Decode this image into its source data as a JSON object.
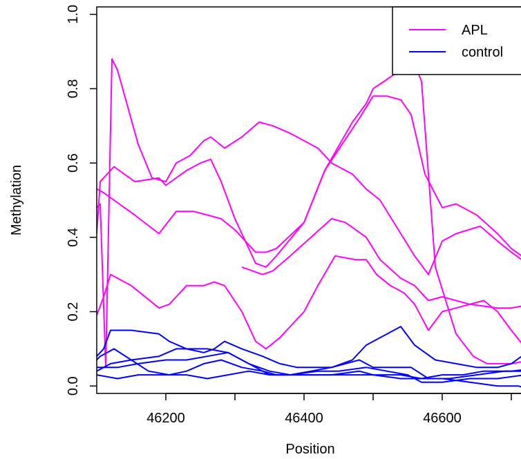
{
  "chart_data": {
    "type": "line",
    "title": "",
    "xlabel": "Position",
    "ylabel": "Methylation",
    "xlim": [
      46100,
      46750
    ],
    "ylim": [
      -0.02,
      1.02
    ],
    "xticks": [
      46200,
      46400,
      46600
    ],
    "xtick_labels": [
      "46200",
      "46400",
      "46600"
    ],
    "yticks": [
      0.0,
      0.2,
      0.4,
      0.6,
      0.8,
      1.0
    ],
    "ytick_labels": [
      "0.0",
      "0.2",
      "0.4",
      "0.6",
      "0.8",
      "1.0"
    ],
    "legend": {
      "placement": "top-right",
      "entries": [
        {
          "label": "APL",
          "color": "#ff00ff"
        },
        {
          "label": "control",
          "color": "#0000ff"
        }
      ]
    },
    "series": [
      {
        "group": "APL",
        "color": "#ff00ff",
        "points": [
          [
            46100,
            0.41
          ],
          [
            46105,
            0.55
          ],
          [
            46115,
            0.57
          ],
          [
            46125,
            0.59
          ],
          [
            46155,
            0.55
          ],
          [
            46190,
            0.56
          ],
          [
            46200,
            0.54
          ],
          [
            46230,
            0.58
          ],
          [
            46250,
            0.6
          ],
          [
            46265,
            0.61
          ],
          [
            46280,
            0.55
          ],
          [
            46300,
            0.45
          ],
          [
            46330,
            0.33
          ],
          [
            46345,
            0.32
          ],
          [
            46360,
            0.35
          ],
          [
            46400,
            0.44
          ],
          [
            46430,
            0.58
          ],
          [
            46470,
            0.71
          ],
          [
            46490,
            0.76
          ],
          [
            46500,
            0.8
          ],
          [
            46540,
            0.85
          ],
          [
            46555,
            0.89
          ],
          [
            46570,
            0.82
          ],
          [
            46590,
            0.32
          ],
          [
            46620,
            0.14
          ],
          [
            46645,
            0.08
          ],
          [
            46665,
            0.06
          ],
          [
            46700,
            0.06
          ],
          [
            46730,
            0.07
          ],
          [
            46750,
            0.09
          ]
        ]
      },
      {
        "group": "APL",
        "color": "#ff00ff",
        "points": [
          [
            46100,
            0.53
          ],
          [
            46110,
            0.52
          ],
          [
            46125,
            0.5
          ],
          [
            46155,
            0.46
          ],
          [
            46190,
            0.41
          ],
          [
            46215,
            0.47
          ],
          [
            46240,
            0.47
          ],
          [
            46260,
            0.46
          ],
          [
            46280,
            0.45
          ],
          [
            46300,
            0.42
          ],
          [
            46330,
            0.36
          ],
          [
            46345,
            0.36
          ],
          [
            46360,
            0.37
          ],
          [
            46400,
            0.44
          ],
          [
            46430,
            0.58
          ],
          [
            46480,
            0.72
          ],
          [
            46500,
            0.78
          ],
          [
            46520,
            0.78
          ],
          [
            46540,
            0.77
          ],
          [
            46555,
            0.73
          ],
          [
            46575,
            0.57
          ],
          [
            46600,
            0.48
          ],
          [
            46620,
            0.49
          ],
          [
            46650,
            0.46
          ],
          [
            46680,
            0.41
          ],
          [
            46700,
            0.37
          ],
          [
            46730,
            0.33
          ],
          [
            46750,
            0.32
          ]
        ]
      },
      {
        "group": "APL",
        "color": "#ff00ff",
        "points": [
          [
            46100,
            0.48
          ],
          [
            46105,
            0.49
          ],
          [
            46113,
            0.05
          ],
          [
            46122,
            0.88
          ],
          [
            46130,
            0.85
          ],
          [
            46160,
            0.65
          ],
          [
            46180,
            0.56
          ],
          [
            46200,
            0.55
          ],
          [
            46215,
            0.6
          ],
          [
            46235,
            0.62
          ],
          [
            46255,
            0.66
          ],
          [
            46265,
            0.67
          ],
          [
            46285,
            0.64
          ],
          [
            46310,
            0.67
          ],
          [
            46335,
            0.71
          ],
          [
            46355,
            0.7
          ],
          [
            46380,
            0.68
          ],
          [
            46420,
            0.64
          ],
          [
            46440,
            0.6
          ],
          [
            46470,
            0.57
          ],
          [
            46490,
            0.53
          ],
          [
            46510,
            0.5
          ],
          [
            46540,
            0.41
          ],
          [
            46560,
            0.35
          ],
          [
            46580,
            0.3
          ],
          [
            46600,
            0.39
          ],
          [
            46620,
            0.41
          ],
          [
            46655,
            0.43
          ],
          [
            46680,
            0.39
          ],
          [
            46700,
            0.36
          ],
          [
            46730,
            0.32
          ],
          [
            46750,
            0.28
          ]
        ]
      },
      {
        "group": "APL",
        "color": "#ff00ff",
        "points": [
          [
            46100,
            0.19
          ],
          [
            46110,
            0.24
          ],
          [
            46120,
            0.3
          ],
          [
            46150,
            0.27
          ],
          [
            46190,
            0.21
          ],
          [
            46205,
            0.22
          ],
          [
            46230,
            0.27
          ],
          [
            46255,
            0.27
          ],
          [
            46270,
            0.28
          ],
          [
            46285,
            0.27
          ],
          [
            46310,
            0.2
          ],
          [
            46330,
            0.12
          ],
          [
            46345,
            0.1
          ],
          [
            46365,
            0.13
          ],
          [
            46400,
            0.2
          ],
          [
            46420,
            0.27
          ],
          [
            46445,
            0.35
          ],
          [
            46475,
            0.34
          ],
          [
            46490,
            0.34
          ],
          [
            46505,
            0.3
          ],
          [
            46525,
            0.27
          ],
          [
            46545,
            0.25
          ],
          [
            46560,
            0.22
          ],
          [
            46580,
            0.15
          ],
          [
            46600,
            0.2
          ],
          [
            46620,
            0.21
          ],
          [
            46660,
            0.23
          ],
          [
            46680,
            0.2
          ],
          [
            46700,
            0.15
          ],
          [
            46730,
            0.08
          ],
          [
            46750,
            0.04
          ]
        ]
      },
      {
        "group": "APL",
        "color": "#ff00ff",
        "points": [
          [
            46310,
            0.32
          ],
          [
            46340,
            0.3
          ],
          [
            46355,
            0.31
          ],
          [
            46380,
            0.35
          ],
          [
            46410,
            0.4
          ],
          [
            46440,
            0.45
          ],
          [
            46460,
            0.44
          ],
          [
            46490,
            0.4
          ],
          [
            46510,
            0.34
          ],
          [
            46540,
            0.29
          ],
          [
            46560,
            0.27
          ],
          [
            46580,
            0.23
          ],
          [
            46600,
            0.24
          ],
          [
            46640,
            0.22
          ],
          [
            46680,
            0.21
          ],
          [
            46700,
            0.21
          ],
          [
            46730,
            0.22
          ],
          [
            46750,
            0.22
          ]
        ]
      },
      {
        "group": "control",
        "color": "#0000ff",
        "points": [
          [
            46100,
            0.08
          ],
          [
            46110,
            0.1
          ],
          [
            46120,
            0.15
          ],
          [
            46150,
            0.15
          ],
          [
            46190,
            0.14
          ],
          [
            46205,
            0.12
          ],
          [
            46230,
            0.1
          ],
          [
            46255,
            0.09
          ],
          [
            46270,
            0.1
          ],
          [
            46285,
            0.12
          ],
          [
            46310,
            0.1
          ],
          [
            46340,
            0.08
          ],
          [
            46365,
            0.06
          ],
          [
            46390,
            0.05
          ],
          [
            46410,
            0.05
          ],
          [
            46440,
            0.05
          ],
          [
            46470,
            0.07
          ],
          [
            46490,
            0.11
          ],
          [
            46510,
            0.13
          ],
          [
            46540,
            0.16
          ],
          [
            46560,
            0.11
          ],
          [
            46590,
            0.07
          ],
          [
            46620,
            0.06
          ],
          [
            46650,
            0.05
          ],
          [
            46680,
            0.05
          ],
          [
            46700,
            0.06
          ],
          [
            46730,
            0.1
          ],
          [
            46750,
            0.13
          ]
        ]
      },
      {
        "group": "control",
        "color": "#0000ff",
        "points": [
          [
            46100,
            0.07
          ],
          [
            46105,
            0.08
          ],
          [
            46125,
            0.1
          ],
          [
            46150,
            0.07
          ],
          [
            46175,
            0.04
          ],
          [
            46205,
            0.03
          ],
          [
            46230,
            0.04
          ],
          [
            46255,
            0.06
          ],
          [
            46280,
            0.07
          ],
          [
            46310,
            0.05
          ],
          [
            46340,
            0.04
          ],
          [
            46360,
            0.03
          ],
          [
            46400,
            0.03
          ],
          [
            46440,
            0.03
          ],
          [
            46480,
            0.04
          ],
          [
            46500,
            0.03
          ],
          [
            46540,
            0.03
          ],
          [
            46570,
            0.02
          ],
          [
            46600,
            0.03
          ],
          [
            46630,
            0.03
          ],
          [
            46660,
            0.04
          ],
          [
            46700,
            0.04
          ],
          [
            46750,
            0.05
          ]
        ]
      },
      {
        "group": "control",
        "color": "#0000ff",
        "points": [
          [
            46100,
            0.04
          ],
          [
            46120,
            0.06
          ],
          [
            46150,
            0.07
          ],
          [
            46190,
            0.08
          ],
          [
            46215,
            0.1
          ],
          [
            46240,
            0.1
          ],
          [
            46260,
            0.1
          ],
          [
            46290,
            0.09
          ],
          [
            46320,
            0.06
          ],
          [
            46350,
            0.04
          ],
          [
            46380,
            0.03
          ],
          [
            46410,
            0.04
          ],
          [
            46440,
            0.05
          ],
          [
            46480,
            0.07
          ],
          [
            46500,
            0.05
          ],
          [
            46530,
            0.05
          ],
          [
            46555,
            0.05
          ],
          [
            46580,
            0.02
          ],
          [
            46610,
            0.02
          ],
          [
            46650,
            0.03
          ],
          [
            46690,
            0.04
          ],
          [
            46750,
            0.04
          ]
        ]
      },
      {
        "group": "control",
        "color": "#0000ff",
        "points": [
          [
            46100,
            0.03
          ],
          [
            46130,
            0.02
          ],
          [
            46160,
            0.03
          ],
          [
            46200,
            0.03
          ],
          [
            46230,
            0.03
          ],
          [
            46260,
            0.02
          ],
          [
            46290,
            0.03
          ],
          [
            46320,
            0.04
          ],
          [
            46350,
            0.03
          ],
          [
            46380,
            0.03
          ],
          [
            46420,
            0.04
          ],
          [
            46450,
            0.04
          ],
          [
            46490,
            0.05
          ],
          [
            46520,
            0.04
          ],
          [
            46550,
            0.03
          ],
          [
            46570,
            0.01
          ],
          [
            46600,
            0.01
          ],
          [
            46640,
            0.02
          ],
          [
            46680,
            0.02
          ],
          [
            46720,
            0.03
          ],
          [
            46750,
            0.03
          ]
        ]
      },
      {
        "group": "control",
        "color": "#0000ff",
        "points": [
          [
            46100,
            0.05
          ],
          [
            46130,
            0.05
          ],
          [
            46160,
            0.06
          ],
          [
            46200,
            0.07
          ],
          [
            46230,
            0.07
          ],
          [
            46260,
            0.08
          ],
          [
            46290,
            0.09
          ],
          [
            46320,
            0.06
          ],
          [
            46350,
            0.03
          ],
          [
            46380,
            0.03
          ],
          [
            46420,
            0.03
          ],
          [
            46460,
            0.03
          ],
          [
            46500,
            0.03
          ],
          [
            46540,
            0.02
          ],
          [
            46570,
            0.02
          ],
          [
            46600,
            0.02
          ],
          [
            46640,
            0.01
          ],
          [
            46680,
            0.0
          ],
          [
            46710,
            0.0
          ],
          [
            46730,
            -0.01
          ],
          [
            46750,
            0.0
          ]
        ]
      }
    ]
  }
}
